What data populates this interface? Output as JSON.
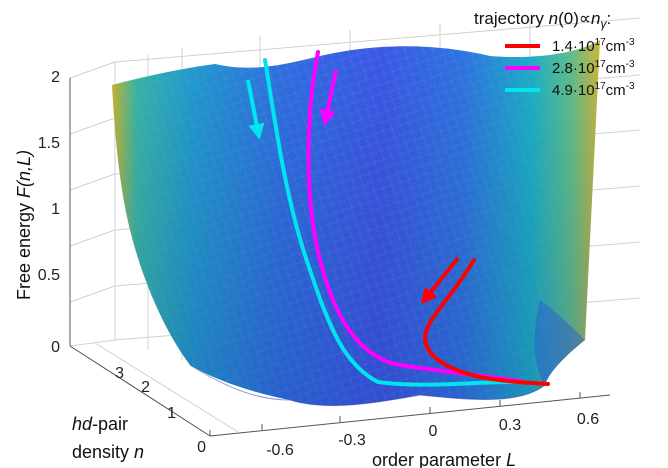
{
  "chart_data": {
    "type": "surface",
    "zlabel": {
      "main": "Free energy ",
      "italic": "F(n,L)"
    },
    "xlabel": {
      "main": "order parameter ",
      "italic": "L"
    },
    "ylabel": {
      "line1_italic": "hd",
      "line1_rest": "-pair",
      "line2_main": "density ",
      "line2_italic": "n"
    },
    "zticks": [
      "0",
      "0.5",
      "1",
      "1.5",
      "2"
    ],
    "xticks": [
      "-0.6",
      "-0.3",
      "0",
      "0.3",
      "0.6"
    ],
    "yticks": [
      "0",
      "1",
      "2",
      "3"
    ],
    "zlim": [
      0,
      2
    ],
    "xlim": [
      -0.75,
      0.75
    ],
    "ylim": [
      0,
      3.5
    ],
    "legend": {
      "title_main": "trajectory ",
      "title_italic_1": "n",
      "title_mid": "(0)∝",
      "title_italic_2": "n",
      "title_sub": "γ",
      "title_end": ":",
      "placement": "top-right"
    },
    "series": [
      {
        "name": "1.4·10¹⁷cm⁻³",
        "label_base": "1.4·10",
        "label_exp": "17",
        "label_unit": "cm",
        "label_unit_exp": "-3",
        "color": "#ff0000"
      },
      {
        "name": "2.8·10¹⁷cm⁻³",
        "label_base": "2.8·10",
        "label_exp": "17",
        "label_unit": "cm",
        "label_unit_exp": "-3",
        "color": "#ff00ff"
      },
      {
        "name": "4.9·10¹⁷cm⁻³",
        "label_base": "4.9·10",
        "label_exp": "17",
        "label_unit": "cm",
        "label_unit_exp": "-3",
        "color": "#00e5ee"
      }
    ],
    "colormap": "parula",
    "grid": true
  }
}
